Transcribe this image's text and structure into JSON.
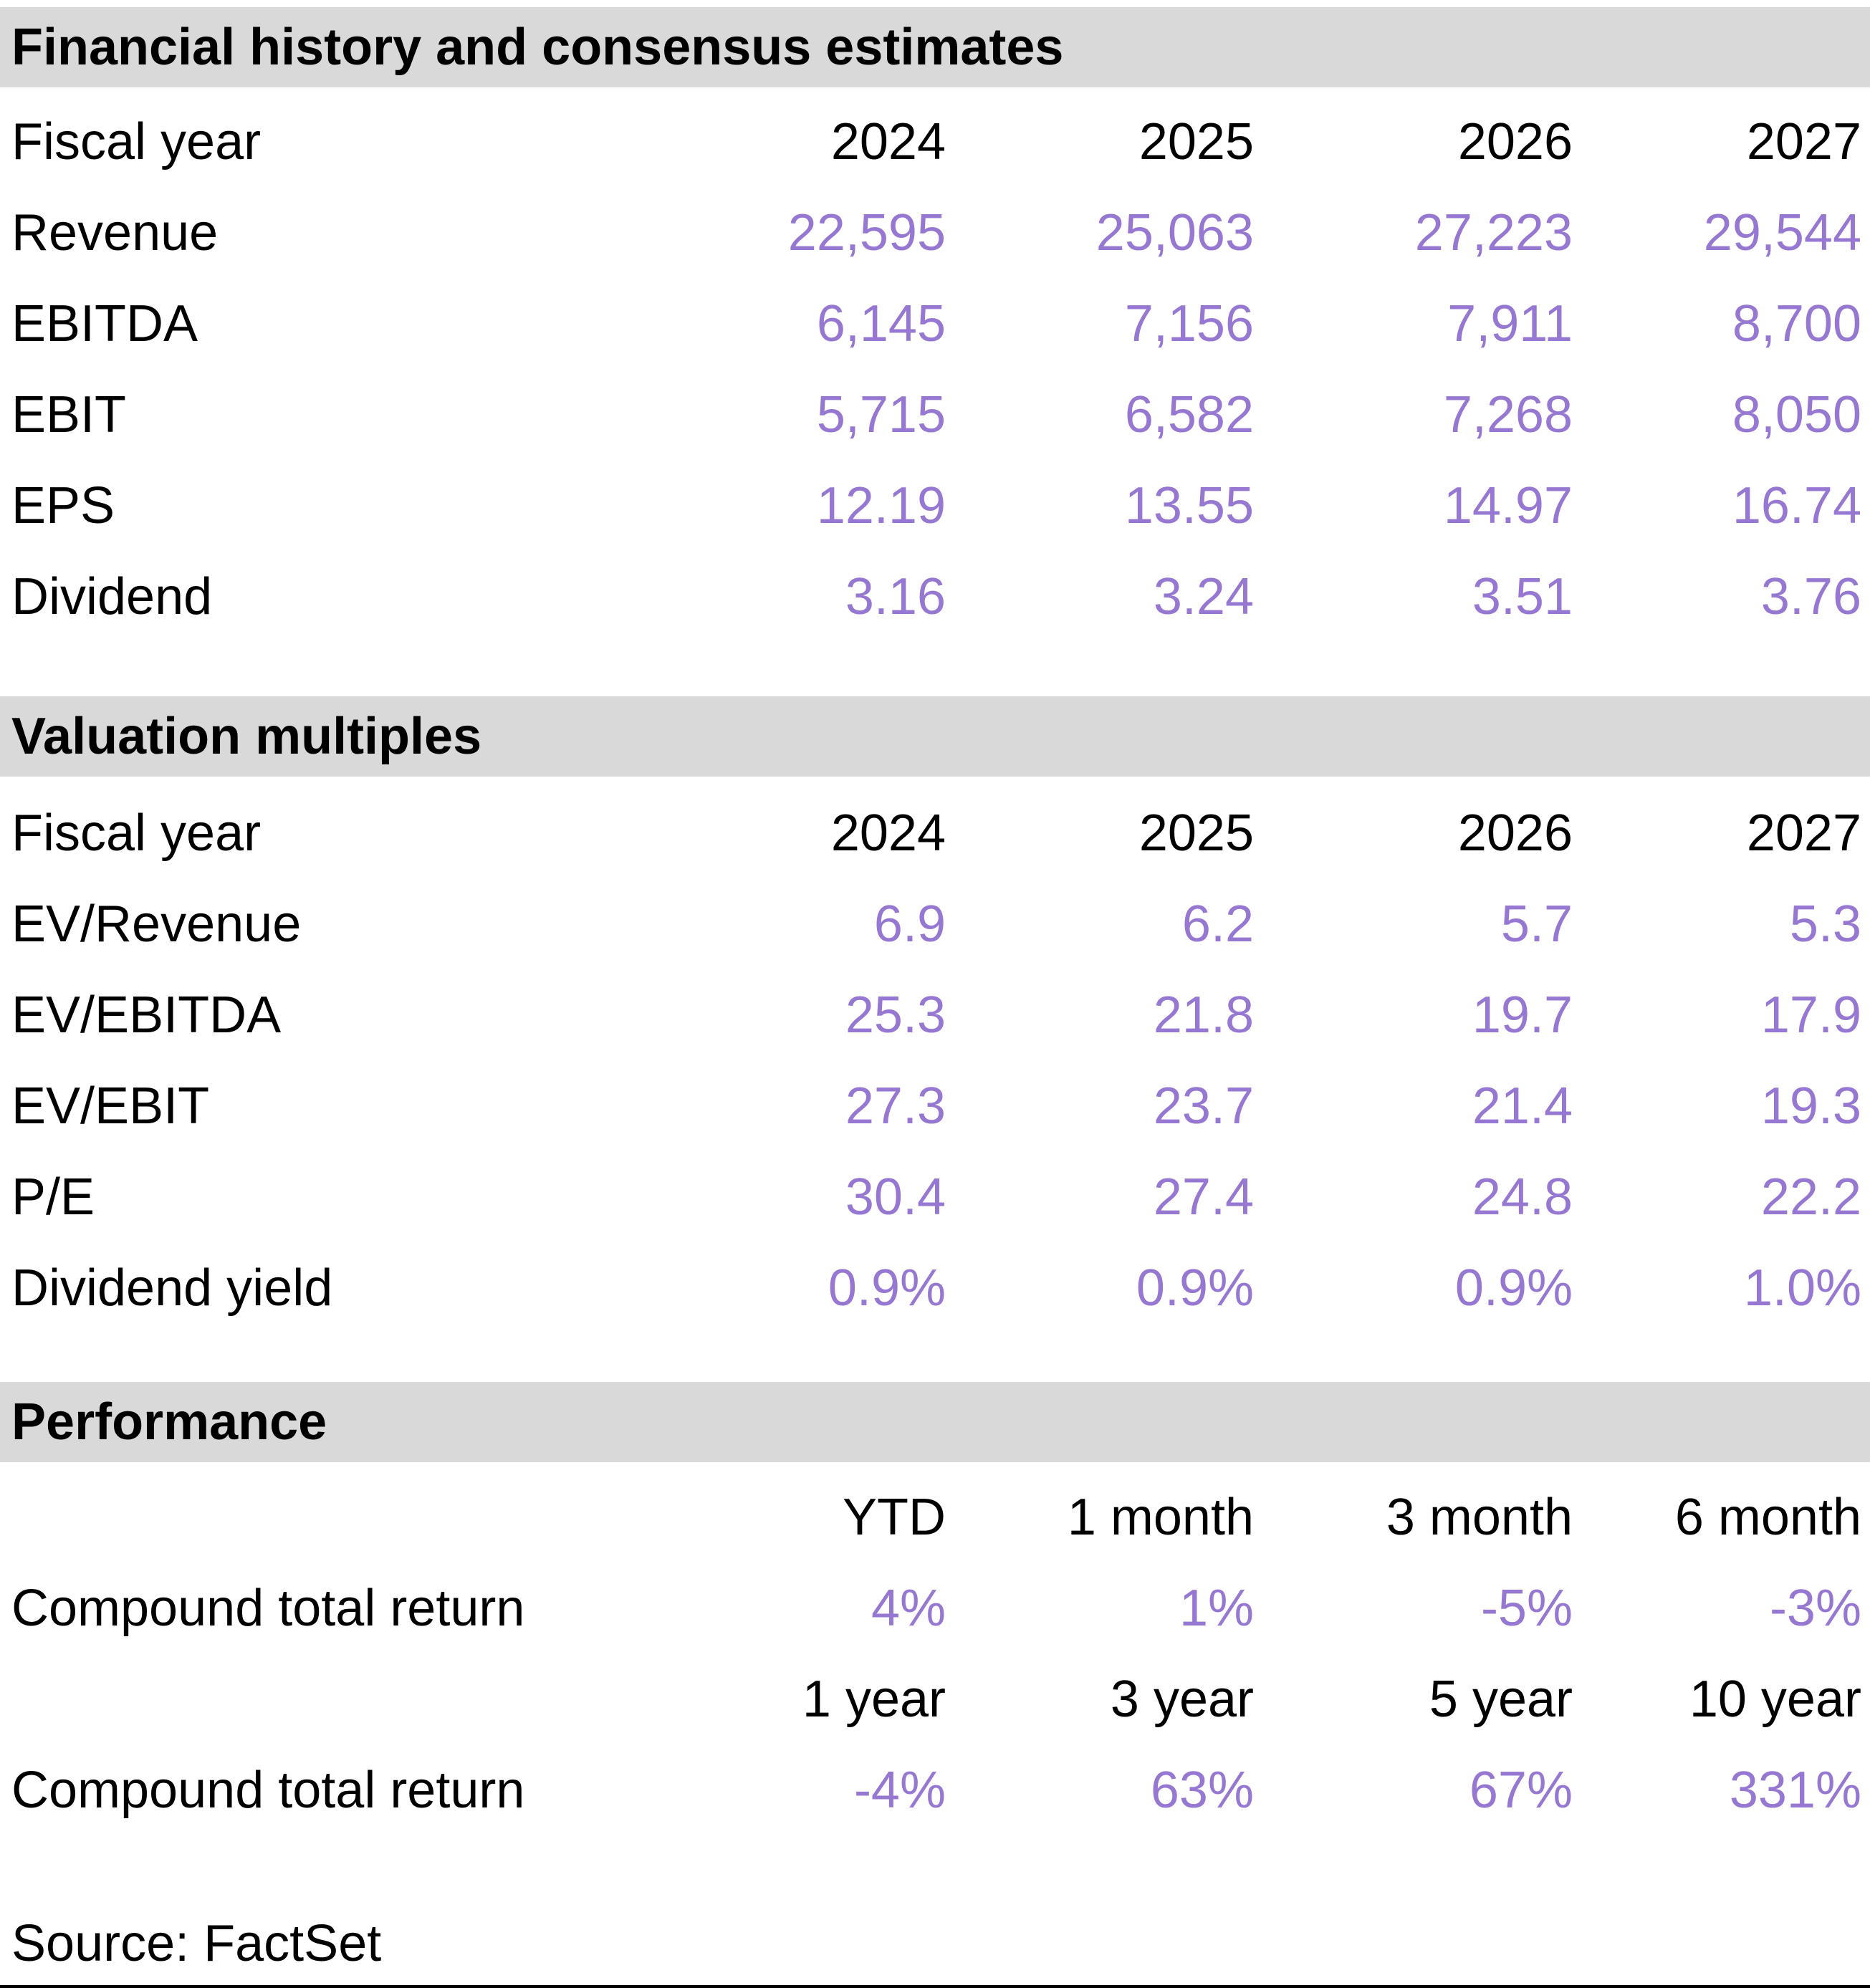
{
  "colors": {
    "section_header_bg": "#d9d9d9",
    "value_text": "#9678d2",
    "label_text": "#000000",
    "bottom_rule": "#000000"
  },
  "financial": {
    "title": "Financial history and consensus estimates",
    "header": {
      "label": "Fiscal year",
      "cols": [
        "2024",
        "2025",
        "2026",
        "2027"
      ]
    },
    "rows": [
      {
        "label": "Revenue",
        "values": [
          "22,595",
          "25,063",
          "27,223",
          "29,544"
        ]
      },
      {
        "label": "EBITDA",
        "values": [
          "6,145",
          "7,156",
          "7,911",
          "8,700"
        ]
      },
      {
        "label": "EBIT",
        "values": [
          "5,715",
          "6,582",
          "7,268",
          "8,050"
        ]
      },
      {
        "label": "EPS",
        "values": [
          "12.19",
          "13.55",
          "14.97",
          "16.74"
        ]
      },
      {
        "label": "Dividend",
        "values": [
          "3.16",
          "3.24",
          "3.51",
          "3.76"
        ]
      }
    ]
  },
  "valuation": {
    "title": "Valuation multiples",
    "header": {
      "label": "Fiscal year",
      "cols": [
        "2024",
        "2025",
        "2026",
        "2027"
      ]
    },
    "rows": [
      {
        "label": "EV/Revenue",
        "values": [
          "6.9",
          "6.2",
          "5.7",
          "5.3"
        ]
      },
      {
        "label": "EV/EBITDA",
        "values": [
          "25.3",
          "21.8",
          "19.7",
          "17.9"
        ]
      },
      {
        "label": "EV/EBIT",
        "values": [
          "27.3",
          "23.7",
          "21.4",
          "19.3"
        ]
      },
      {
        "label": "P/E",
        "values": [
          "30.4",
          "27.4",
          "24.8",
          "22.2"
        ]
      },
      {
        "label": "Dividend yield",
        "values": [
          "0.9%",
          "0.9%",
          "0.9%",
          "1.0%"
        ]
      }
    ]
  },
  "performance": {
    "title": "Performance",
    "blocks": [
      {
        "periods": [
          "YTD",
          "1 month",
          "3 month",
          "6 month"
        ],
        "label": "Compound total return",
        "values": [
          "4%",
          "1%",
          "-5%",
          "-3%"
        ]
      },
      {
        "periods": [
          "1 year",
          "3 year",
          "5 year",
          "10 year"
        ],
        "label": "Compound total return",
        "values": [
          "-4%",
          "63%",
          "67%",
          "331%"
        ]
      }
    ]
  },
  "source": "Source: FactSet"
}
